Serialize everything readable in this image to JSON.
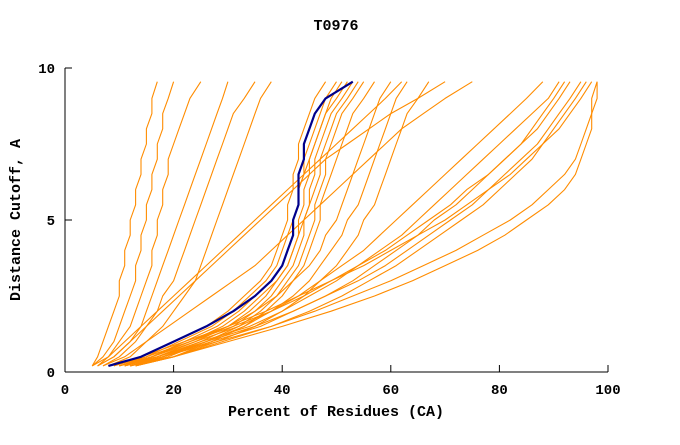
{
  "chart_data": {
    "type": "line",
    "title": "T0976",
    "xlabel": "Percent of Residues (CA)",
    "ylabel": "Distance Cutoff, A",
    "xlim": [
      0,
      100
    ],
    "ylim": [
      0,
      10
    ],
    "x_ticks": [
      0,
      20,
      40,
      60,
      80,
      100
    ],
    "y_ticks": [
      0,
      5,
      10
    ],
    "grid": false,
    "legend": "none",
    "colors": {
      "orange": "#ff8c00",
      "blue": "#00008b"
    },
    "y_levels": [
      0.2,
      0.5,
      1,
      1.5,
      2,
      2.5,
      3,
      3.5,
      4,
      4.5,
      5,
      5.5,
      6,
      6.5,
      7,
      7.5,
      8,
      8.5,
      9,
      9.55
    ],
    "series": [
      {
        "color": "orange",
        "x": [
          5,
          6,
          7,
          8,
          9,
          10,
          10,
          11,
          11,
          12,
          12,
          13,
          13,
          14,
          14,
          15,
          15,
          16,
          16,
          17
        ]
      },
      {
        "color": "orange",
        "x": [
          5,
          7,
          9,
          10,
          11,
          12,
          13,
          13,
          14,
          14,
          15,
          15,
          16,
          16,
          17,
          17,
          18,
          18,
          19,
          20
        ]
      },
      {
        "color": "orange",
        "x": [
          6,
          8,
          10,
          12,
          13,
          14,
          15,
          16,
          16,
          17,
          17,
          18,
          18,
          19,
          19,
          20,
          21,
          22,
          23,
          25
        ]
      },
      {
        "color": "orange",
        "x": [
          6,
          9,
          12,
          14,
          15,
          16,
          17,
          18,
          19,
          20,
          21,
          22,
          23,
          24,
          25,
          26,
          27,
          28,
          29,
          30
        ]
      },
      {
        "color": "orange",
        "x": [
          7,
          10,
          13,
          15,
          17,
          18,
          20,
          21,
          22,
          23,
          24,
          25,
          26,
          27,
          28,
          29,
          30,
          31,
          33,
          35
        ]
      },
      {
        "color": "orange",
        "x": [
          8,
          12,
          15,
          18,
          20,
          22,
          24,
          25,
          26,
          27,
          28,
          29,
          30,
          31,
          32,
          33,
          34,
          35,
          36,
          38
        ]
      },
      {
        "color": "orange",
        "x": [
          9,
          14,
          20,
          26,
          30,
          33,
          36,
          38,
          39,
          40,
          41,
          41,
          42,
          42,
          43,
          43,
          44,
          45,
          46,
          48
        ]
      },
      {
        "color": "orange",
        "x": [
          10,
          16,
          22,
          28,
          32,
          35,
          38,
          40,
          41,
          42,
          42,
          43,
          43,
          44,
          44,
          45,
          46,
          47,
          48,
          50
        ]
      },
      {
        "color": "orange",
        "x": [
          11,
          17,
          24,
          30,
          34,
          37,
          39,
          41,
          42,
          43,
          43,
          44,
          44,
          45,
          45,
          46,
          47,
          48,
          49,
          51
        ]
      },
      {
        "color": "orange",
        "x": [
          10,
          15,
          21,
          27,
          31,
          34,
          37,
          39,
          40,
          41,
          42,
          43,
          43,
          44,
          45,
          46,
          47,
          48,
          50,
          52
        ]
      },
      {
        "color": "orange",
        "x": [
          12,
          18,
          25,
          31,
          35,
          38,
          40,
          42,
          43,
          44,
          44,
          45,
          45,
          46,
          46,
          47,
          48,
          49,
          51,
          53
        ]
      },
      {
        "color": "orange",
        "x": [
          11,
          16,
          23,
          29,
          33,
          36,
          39,
          41,
          42,
          43,
          44,
          45,
          46,
          47,
          47,
          48,
          49,
          50,
          52,
          54
        ]
      },
      {
        "color": "orange",
        "x": [
          12,
          19,
          26,
          32,
          36,
          39,
          41,
          43,
          44,
          45,
          46,
          46,
          47,
          48,
          48,
          49,
          50,
          51,
          53,
          55
        ]
      },
      {
        "color": "orange",
        "x": [
          13,
          20,
          27,
          33,
          37,
          40,
          42,
          44,
          45,
          46,
          47,
          47,
          48,
          49,
          50,
          51,
          52,
          53,
          55,
          57
        ]
      },
      {
        "color": "orange",
        "x": [
          10,
          16,
          23,
          30,
          35,
          39,
          42,
          45,
          47,
          48,
          50,
          51,
          52,
          53,
          54,
          55,
          56,
          57,
          58,
          60
        ]
      },
      {
        "color": "orange",
        "x": [
          12,
          18,
          26,
          33,
          38,
          42,
          45,
          47,
          49,
          51,
          52,
          54,
          55,
          56,
          57,
          58,
          59,
          60,
          61,
          63
        ]
      },
      {
        "color": "orange",
        "x": [
          13,
          20,
          28,
          35,
          40,
          44,
          47,
          50,
          52,
          54,
          55,
          57,
          58,
          59,
          60,
          61,
          62,
          63,
          65,
          67
        ]
      },
      {
        "color": "orange",
        "x": [
          10,
          16,
          24,
          32,
          38,
          43,
          47,
          51,
          55,
          58,
          61,
          64,
          67,
          70,
          73,
          76,
          79,
          82,
          85,
          88
        ]
      },
      {
        "color": "orange",
        "x": [
          11,
          17,
          25,
          34,
          40,
          45,
          50,
          54,
          58,
          62,
          65,
          68,
          71,
          74,
          77,
          80,
          83,
          86,
          89,
          91
        ]
      },
      {
        "color": "orange",
        "x": [
          12,
          18,
          27,
          36,
          42,
          48,
          53,
          57,
          61,
          65,
          68,
          72,
          75,
          78,
          81,
          84,
          86,
          88,
          90,
          92
        ]
      },
      {
        "color": "orange",
        "x": [
          9,
          15,
          23,
          31,
          38,
          44,
          49,
          54,
          59,
          63,
          67,
          71,
          74,
          78,
          81,
          84,
          87,
          89,
          91,
          93
        ]
      },
      {
        "color": "orange",
        "x": [
          10,
          17,
          26,
          35,
          42,
          48,
          54,
          59,
          63,
          67,
          71,
          75,
          78,
          81,
          84,
          87,
          89,
          91,
          93,
          95
        ]
      },
      {
        "color": "orange",
        "x": [
          13,
          20,
          29,
          38,
          45,
          51,
          56,
          61,
          65,
          69,
          73,
          77,
          80,
          83,
          86,
          88,
          90,
          92,
          94,
          96
        ]
      },
      {
        "color": "orange",
        "x": [
          8,
          14,
          22,
          30,
          37,
          43,
          49,
          55,
          60,
          65,
          70,
          74,
          78,
          82,
          85,
          88,
          91,
          93,
          95,
          97
        ]
      },
      {
        "color": "orange",
        "x": [
          11,
          18,
          28,
          38,
          46,
          53,
          60,
          66,
          72,
          77,
          82,
          86,
          89,
          92,
          94,
          95,
          96,
          97,
          97,
          98
        ]
      },
      {
        "color": "orange",
        "x": [
          12,
          20,
          30,
          40,
          49,
          57,
          64,
          70,
          76,
          81,
          85,
          89,
          92,
          94,
          95,
          96,
          97,
          97,
          98,
          98
        ]
      },
      {
        "color": "orange",
        "x": [
          6,
          9,
          12,
          15,
          18,
          21,
          24,
          27,
          30,
          33,
          36,
          39,
          42,
          45,
          48,
          52,
          56,
          60,
          65,
          70
        ]
      },
      {
        "color": "orange",
        "x": [
          7,
          11,
          15,
          19,
          23,
          27,
          31,
          35,
          38,
          41,
          44,
          47,
          50,
          53,
          56,
          59,
          62,
          66,
          70,
          75
        ]
      },
      {
        "color": "orange",
        "x": [
          5,
          8,
          11,
          14,
          17,
          20,
          23,
          26,
          29,
          32,
          35,
          38,
          41,
          44,
          47,
          50,
          53,
          56,
          59,
          62
        ]
      },
      {
        "color": "blue",
        "x": [
          8,
          14,
          20,
          26,
          31,
          35,
          38,
          40,
          41,
          42,
          42,
          43,
          43,
          43,
          44,
          44,
          45,
          46,
          48,
          53
        ]
      }
    ]
  }
}
